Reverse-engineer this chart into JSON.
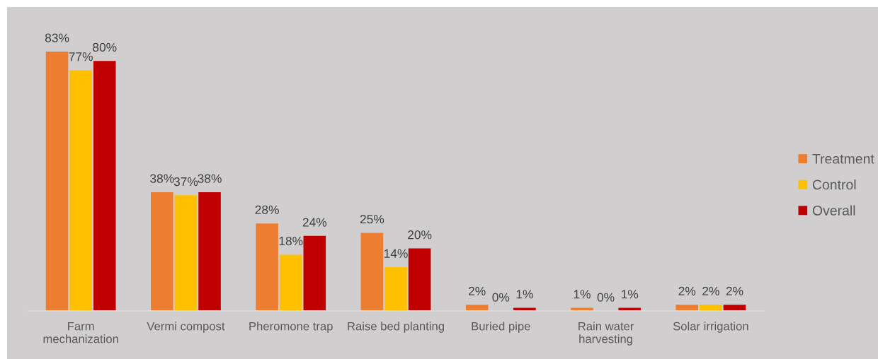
{
  "chart_data": {
    "type": "bar",
    "categories": [
      "Farm\nmechanization",
      "Vermi compost",
      "Pheromone trap",
      "Raise bed planting",
      "Buried pipe",
      "Rain water\nharvesting",
      "Solar irrigation"
    ],
    "series": [
      {
        "name": "Treatment",
        "color": "#ed7d31",
        "values": [
          83,
          38,
          28,
          25,
          2,
          1,
          2
        ],
        "value_labels": [
          "83%",
          "38%",
          "28%",
          "25%",
          "2%",
          "1%",
          "2%"
        ]
      },
      {
        "name": "Control",
        "color": "#ffc000",
        "values": [
          77,
          37,
          18,
          14,
          0,
          0,
          2
        ],
        "value_labels": [
          "77%",
          "37%",
          "18%",
          "14%",
          "0%",
          "0%",
          "2%"
        ]
      },
      {
        "name": "Overall",
        "color": "#c00000",
        "values": [
          80,
          38,
          24,
          20,
          1,
          1,
          2
        ],
        "value_labels": [
          "80%",
          "38%",
          "24%",
          "20%",
          "1%",
          "1%",
          "2%"
        ]
      }
    ],
    "legend": "right"
  }
}
